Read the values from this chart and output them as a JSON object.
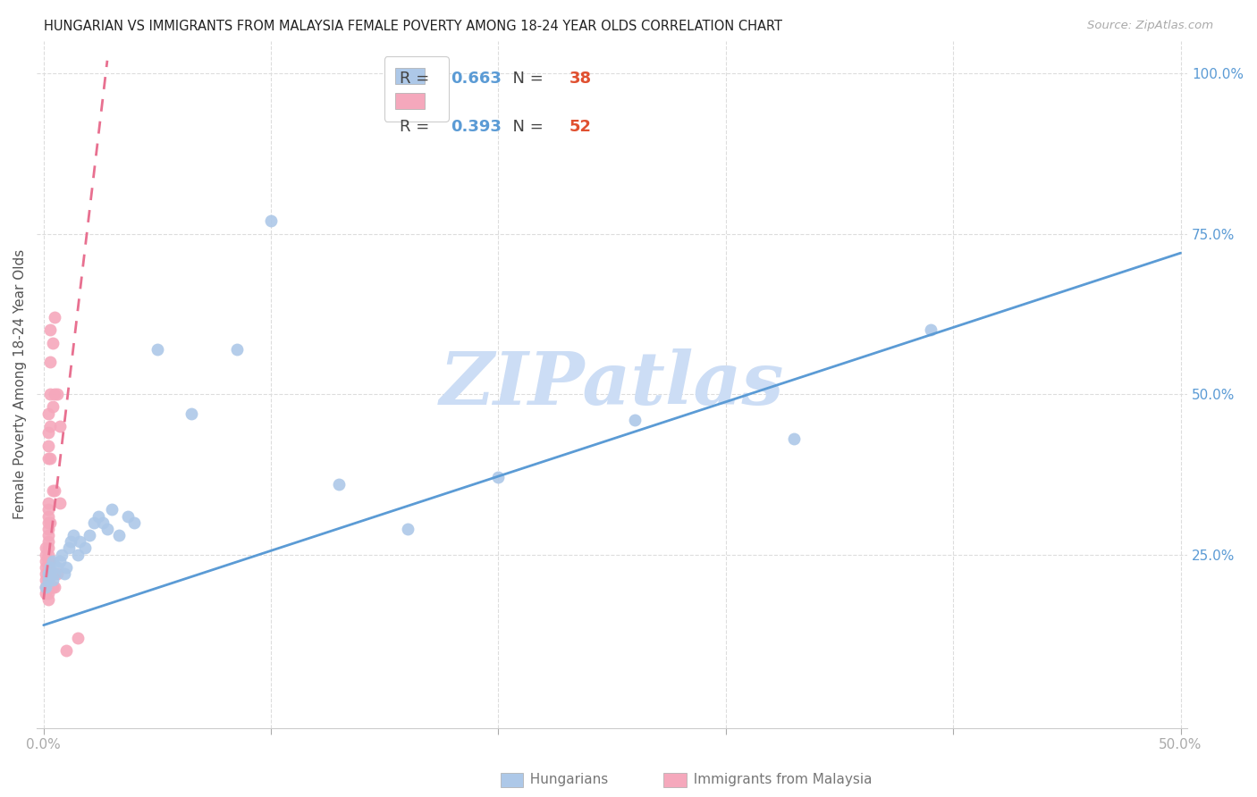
{
  "title": "HUNGARIAN VS IMMIGRANTS FROM MALAYSIA FEMALE POVERTY AMONG 18-24 YEAR OLDS CORRELATION CHART",
  "source": "Source: ZipAtlas.com",
  "ylabel": "Female Poverty Among 18-24 Year Olds",
  "xlim": [
    0.0,
    0.5
  ],
  "ylim": [
    0.0,
    1.0
  ],
  "hungarian_R": 0.663,
  "hungarian_N": 38,
  "malaysia_R": 0.393,
  "malaysia_N": 52,
  "hungarian_color": "#adc8e8",
  "malaysia_color": "#f5a8bc",
  "hungarian_line_color": "#5b9bd5",
  "malaysia_line_color": "#e87090",
  "watermark_color": "#ccddf5",
  "background_color": "#ffffff",
  "hun_line_x0": 0.0,
  "hun_line_y0": 0.14,
  "hun_line_x1": 0.5,
  "hun_line_y1": 0.72,
  "mal_line_x0": 0.0,
  "mal_line_y0": 0.18,
  "mal_line_x1": 0.028,
  "mal_line_y1": 1.02,
  "hungarian_x": [
    0.001,
    0.002,
    0.002,
    0.003,
    0.003,
    0.004,
    0.004,
    0.005,
    0.006,
    0.007,
    0.008,
    0.009,
    0.01,
    0.011,
    0.012,
    0.013,
    0.015,
    0.016,
    0.018,
    0.02,
    0.022,
    0.024,
    0.026,
    0.028,
    0.03,
    0.033,
    0.037,
    0.04,
    0.05,
    0.065,
    0.085,
    0.1,
    0.13,
    0.16,
    0.2,
    0.26,
    0.33,
    0.39
  ],
  "hungarian_y": [
    0.2,
    0.21,
    0.22,
    0.22,
    0.23,
    0.21,
    0.24,
    0.22,
    0.23,
    0.24,
    0.25,
    0.22,
    0.23,
    0.26,
    0.27,
    0.28,
    0.25,
    0.27,
    0.26,
    0.28,
    0.3,
    0.31,
    0.3,
    0.29,
    0.32,
    0.28,
    0.31,
    0.3,
    0.57,
    0.47,
    0.57,
    0.77,
    0.36,
    0.29,
    0.37,
    0.46,
    0.43,
    0.6
  ],
  "malaysia_x": [
    0.001,
    0.001,
    0.001,
    0.001,
    0.001,
    0.001,
    0.001,
    0.001,
    0.002,
    0.002,
    0.002,
    0.002,
    0.002,
    0.002,
    0.002,
    0.002,
    0.002,
    0.002,
    0.002,
    0.002,
    0.002,
    0.002,
    0.002,
    0.002,
    0.002,
    0.002,
    0.002,
    0.002,
    0.003,
    0.003,
    0.003,
    0.003,
    0.003,
    0.003,
    0.003,
    0.003,
    0.003,
    0.004,
    0.004,
    0.004,
    0.004,
    0.004,
    0.005,
    0.005,
    0.005,
    0.005,
    0.006,
    0.006,
    0.007,
    0.007,
    0.01,
    0.015
  ],
  "malaysia_y": [
    0.19,
    0.2,
    0.21,
    0.22,
    0.23,
    0.24,
    0.25,
    0.26,
    0.18,
    0.19,
    0.2,
    0.21,
    0.22,
    0.23,
    0.24,
    0.25,
    0.26,
    0.27,
    0.28,
    0.29,
    0.3,
    0.31,
    0.32,
    0.33,
    0.4,
    0.42,
    0.44,
    0.47,
    0.2,
    0.22,
    0.24,
    0.3,
    0.4,
    0.45,
    0.5,
    0.55,
    0.6,
    0.2,
    0.22,
    0.35,
    0.48,
    0.58,
    0.2,
    0.35,
    0.5,
    0.62,
    0.22,
    0.5,
    0.33,
    0.45,
    0.1,
    0.12
  ]
}
